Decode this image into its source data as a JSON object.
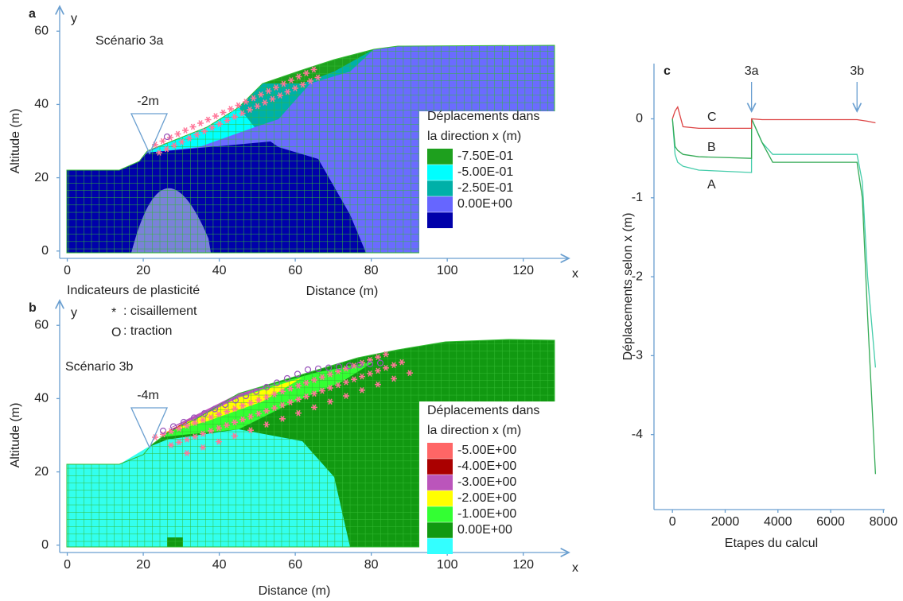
{
  "chart_data": [
    {
      "type": "contour",
      "panel_label": "a",
      "scenario": "Scénario 3a",
      "xlabel": "Distance (m)",
      "ylabel": "Altitude (m)",
      "x_axis_name": "x",
      "y_axis_name": "y",
      "xlim": [
        -2,
        132
      ],
      "ylim": [
        -2,
        62
      ],
      "xticks": [
        0,
        20,
        40,
        60,
        80,
        100,
        120
      ],
      "yticks": [
        0,
        20,
        40,
        60
      ],
      "annotation": "-2m",
      "legend": {
        "title": [
          "Déplacements dans",
          "la direction x (m)"
        ],
        "colors": [
          "#1ea01e",
          "#00ffff",
          "#00b0a8",
          "#6666ff",
          "#0000aa"
        ],
        "levels": [
          {
            "value": -0.75,
            "label": "-7.50E-01"
          },
          {
            "value": -0.5,
            "label": "-5.00E-01"
          },
          {
            "value": -0.25,
            "label": "-2.50E-01"
          },
          {
            "value": 0,
            "label": "0.00E+00"
          }
        ]
      }
    },
    {
      "type": "contour",
      "panel_label": "b",
      "scenario": "Scénario 3b",
      "xlabel": "Distance (m)",
      "ylabel": "Altitude (m)",
      "x_axis_name": "x",
      "y_axis_name": "y",
      "xlim": [
        -2,
        132
      ],
      "ylim": [
        -2,
        62
      ],
      "xticks": [
        0,
        20,
        40,
        60,
        80,
        100,
        120
      ],
      "yticks": [
        0,
        20,
        40,
        60
      ],
      "annotation": "-4m",
      "plasticity_legend": {
        "title": "Indicateurs de plasticité",
        "items": [
          {
            "symbol": "*",
            "label": ": cisaillement",
            "color": "#e0307a"
          },
          {
            "symbol": "O",
            "label": ": traction",
            "color": "#8844aa"
          }
        ]
      },
      "legend": {
        "title": [
          "Déplacements dans",
          "la direction x (m)"
        ],
        "colors": [
          "#ff6666",
          "#aa0000",
          "#bb55bb",
          "#ffff00",
          "#33ff33",
          "#119911",
          "#33ffff"
        ],
        "levels": [
          {
            "value": -5,
            "label": "-5.00E+00"
          },
          {
            "value": -4,
            "label": "-4.00E+00"
          },
          {
            "value": -3,
            "label": "-3.00E+00"
          },
          {
            "value": -2,
            "label": "-2.00E+00"
          },
          {
            "value": -1,
            "label": "-1.00E+00"
          },
          {
            "value": 0,
            "label": "0.00E+00"
          }
        ]
      }
    },
    {
      "type": "line",
      "panel_label": "c",
      "xlabel": "Etapes du calcul",
      "ylabel": "Déplacements selon x (m)",
      "xlim": [
        -700,
        8200
      ],
      "ylim": [
        -4.95,
        0.7
      ],
      "xticks": [
        0,
        2000,
        4000,
        6000,
        8000
      ],
      "yticks": [
        0,
        -1,
        -2,
        -3,
        -4
      ],
      "annotations": [
        {
          "text": "3a",
          "x": 3000
        },
        {
          "text": "3b",
          "x": 7000
        }
      ],
      "x": [
        0,
        100,
        200,
        400,
        1000,
        3000,
        3001,
        3400,
        3800,
        7000,
        7200,
        7400,
        7700
      ],
      "series": [
        {
          "name": "A",
          "color": "#44ccaa",
          "label_color": "#3377bb",
          "values": [
            0,
            -0.45,
            -0.55,
            -0.6,
            -0.65,
            -0.68,
            0,
            -0.3,
            -0.45,
            -0.45,
            -0.8,
            -2.0,
            -3.15
          ]
        },
        {
          "name": "B",
          "color": "#33aa55",
          "label_color": "#33aa55",
          "values": [
            0,
            -0.35,
            -0.4,
            -0.45,
            -0.48,
            -0.5,
            0,
            -0.3,
            -0.55,
            -0.55,
            -1.0,
            -2.5,
            -4.5
          ]
        },
        {
          "name": "C",
          "color": "#dd4444",
          "label_color": "#dd3333",
          "values": [
            0,
            0.1,
            0.15,
            -0.1,
            -0.12,
            -0.12,
            0,
            -0.01,
            -0.01,
            -0.01,
            -0.02,
            -0.03,
            -0.05
          ]
        }
      ]
    }
  ]
}
